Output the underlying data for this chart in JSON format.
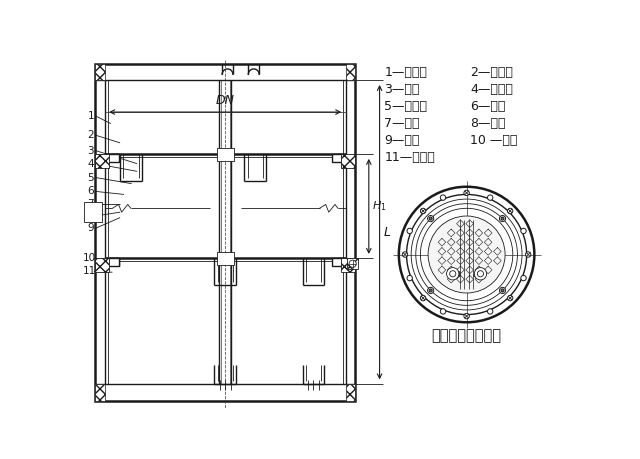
{
  "title": "定距管式塔盘结构",
  "legend_lines": [
    [
      "1—塔盘板",
      "2—降液管"
    ],
    [
      "3—拉杆",
      "4—定距管"
    ],
    [
      "5—塔盘圈",
      "6—吊耳"
    ],
    [
      "7—螺栓",
      "8—螺母"
    ],
    [
      "9—压板",
      "10 —压圈"
    ],
    [
      "11—石棉绳",
      ""
    ]
  ],
  "bg_color": "#ffffff",
  "line_color": "#1a1a1a"
}
